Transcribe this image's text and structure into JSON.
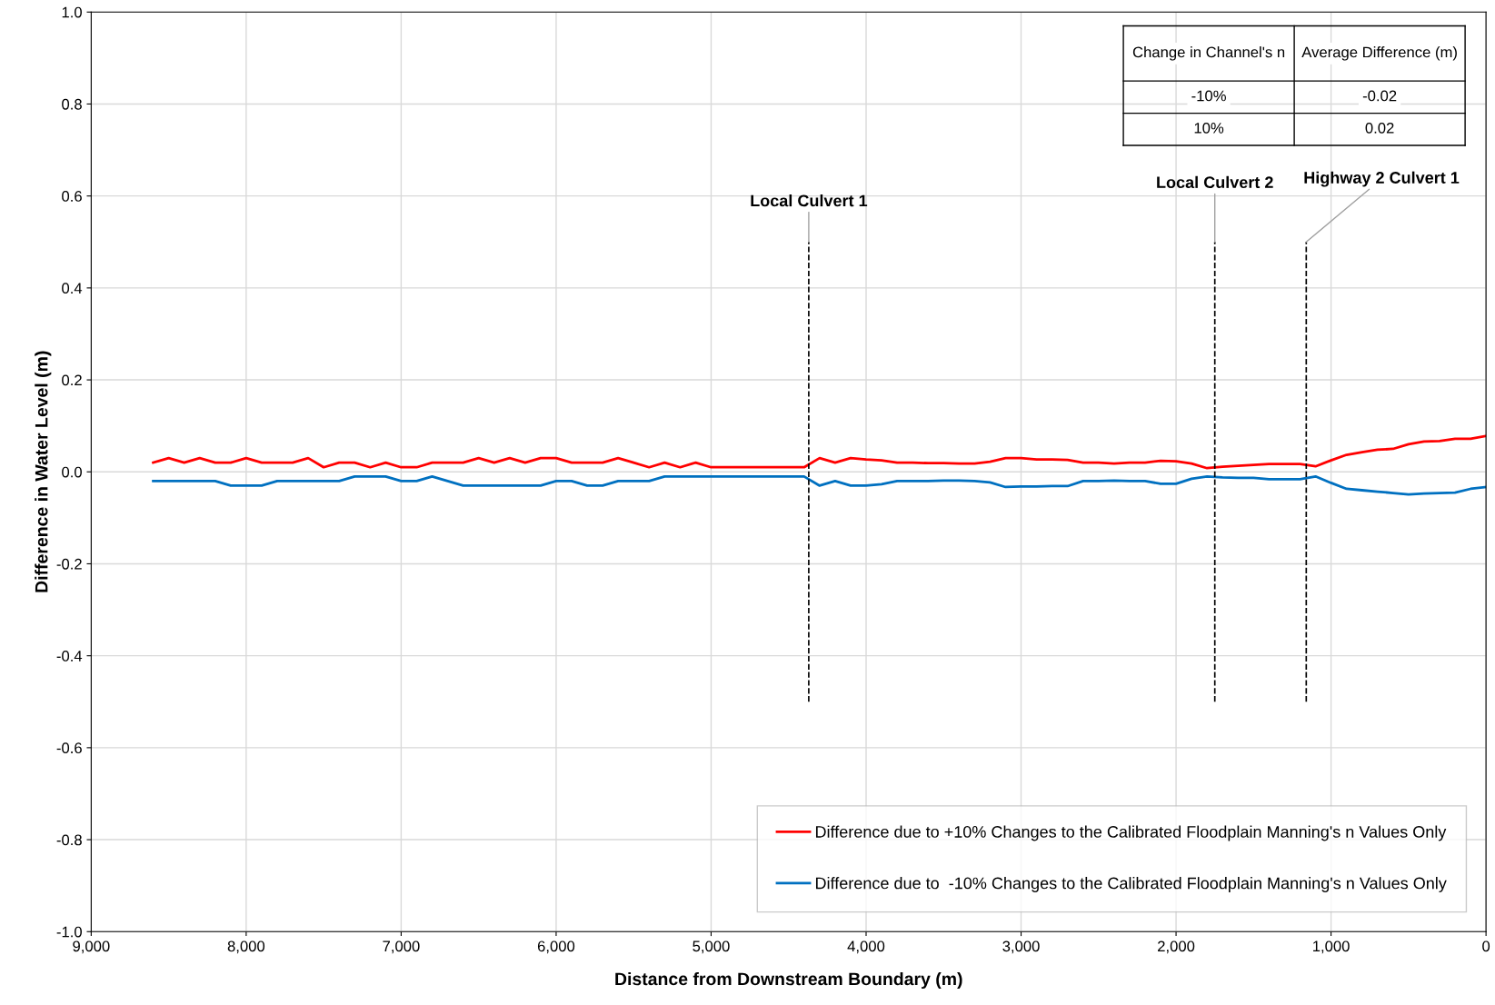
{
  "chart_data": {
    "type": "line",
    "xlabel": "Distance from Downstream Boundary (m)",
    "ylabel": "Difference in Water Level (m)",
    "x": [
      8600,
      8500,
      8400,
      8300,
      8200,
      8100,
      8000,
      7900,
      7800,
      7700,
      7600,
      7500,
      7400,
      7300,
      7200,
      7100,
      7000,
      6900,
      6800,
      6700,
      6600,
      6500,
      6400,
      6300,
      6200,
      6100,
      6000,
      5900,
      5800,
      5700,
      5600,
      5500,
      5400,
      5300,
      5200,
      5100,
      5000,
      4900,
      4800,
      4700,
      4600,
      4500,
      4400,
      4300,
      4200,
      4100,
      4000,
      3900,
      3800,
      3700,
      3600,
      3500,
      3400,
      3300,
      3200,
      3100,
      3000,
      2900,
      2800,
      2700,
      2600,
      2500,
      2400,
      2300,
      2200,
      2100,
      2000,
      1900,
      1800,
      1700,
      1600,
      1500,
      1400,
      1300,
      1200,
      1100,
      1000,
      900,
      800,
      700,
      600,
      500,
      400,
      300,
      200,
      100,
      0
    ],
    "series": [
      {
        "name": "Difference due to +10% Changes to the Calibrated Floodplain Manning's n Values Only",
        "color": "#ff0000",
        "values": [
          0.02,
          0.03,
          0.02,
          0.03,
          0.02,
          0.02,
          0.03,
          0.02,
          0.02,
          0.02,
          0.03,
          0.01,
          0.02,
          0.02,
          0.01,
          0.02,
          0.01,
          0.01,
          0.02,
          0.02,
          0.02,
          0.03,
          0.02,
          0.03,
          0.02,
          0.03,
          0.03,
          0.02,
          0.02,
          0.02,
          0.03,
          0.02,
          0.01,
          0.02,
          0.01,
          0.02,
          0.01,
          0.01,
          0.01,
          0.01,
          0.01,
          0.01,
          0.01,
          0.03,
          0.02,
          0.03,
          0.027,
          0.025,
          0.02,
          0.02,
          0.019,
          0.019,
          0.018,
          0.018,
          0.022,
          0.03,
          0.03,
          0.027,
          0.027,
          0.026,
          0.02,
          0.02,
          0.018,
          0.02,
          0.02,
          0.024,
          0.023,
          0.018,
          0.008,
          0.011,
          0.013,
          0.015,
          0.017,
          0.017,
          0.017,
          0.012,
          0.025,
          0.037,
          0.043,
          0.048,
          0.05,
          0.06,
          0.066,
          0.067,
          0.072,
          0.072,
          0.078
        ]
      },
      {
        "name": "Difference due to  -10% Changes to the Calibrated Floodplain Manning's n Values Only",
        "color": "#0070c0",
        "values": [
          -0.02,
          -0.02,
          -0.02,
          -0.02,
          -0.02,
          -0.03,
          -0.03,
          -0.03,
          -0.02,
          -0.02,
          -0.02,
          -0.02,
          -0.02,
          -0.01,
          -0.01,
          -0.01,
          -0.02,
          -0.02,
          -0.01,
          -0.02,
          -0.03,
          -0.03,
          -0.03,
          -0.03,
          -0.03,
          -0.03,
          -0.02,
          -0.02,
          -0.03,
          -0.03,
          -0.02,
          -0.02,
          -0.02,
          -0.01,
          -0.01,
          -0.01,
          -0.01,
          -0.01,
          -0.01,
          -0.01,
          -0.01,
          -0.01,
          -0.01,
          -0.03,
          -0.02,
          -0.03,
          -0.03,
          -0.027,
          -0.02,
          -0.02,
          -0.02,
          -0.019,
          -0.019,
          -0.02,
          -0.023,
          -0.033,
          -0.032,
          -0.032,
          -0.031,
          -0.031,
          -0.02,
          -0.02,
          -0.019,
          -0.02,
          -0.02,
          -0.026,
          -0.026,
          -0.015,
          -0.01,
          -0.012,
          -0.013,
          -0.013,
          -0.016,
          -0.016,
          -0.016,
          -0.01,
          -0.024,
          -0.037,
          -0.04,
          -0.043,
          -0.046,
          -0.049,
          -0.047,
          -0.046,
          -0.045,
          -0.037,
          -0.033
        ]
      }
    ],
    "xlim": [
      9000,
      0
    ],
    "xticks": [
      {
        "value": 9000,
        "label": "9,000"
      },
      {
        "value": 8000,
        "label": "8,000"
      },
      {
        "value": 7000,
        "label": "7,000"
      },
      {
        "value": 6000,
        "label": "6,000"
      },
      {
        "value": 5000,
        "label": "5,000"
      },
      {
        "value": 4000,
        "label": "4,000"
      },
      {
        "value": 3000,
        "label": "3,000"
      },
      {
        "value": 2000,
        "label": "2,000"
      },
      {
        "value": 1000,
        "label": "1,000"
      },
      0
    ],
    "ylim": [
      -1.0,
      1.0
    ],
    "yticks": [
      {
        "value": -1.0,
        "label": "-1.0"
      },
      {
        "value": -0.8,
        "label": "-0.8"
      },
      {
        "value": -0.6,
        "label": "-0.6"
      },
      {
        "value": -0.4,
        "label": "-0.4"
      },
      {
        "value": -0.2,
        "label": "-0.2"
      },
      {
        "value": 0,
        "label": "0.0"
      },
      {
        "value": 0.2,
        "label": "0.2"
      },
      {
        "value": 0.4,
        "label": "0.4"
      },
      {
        "value": 0.6,
        "label": "0.6"
      },
      {
        "value": 0.8,
        "label": "0.8"
      },
      {
        "value": 1.0,
        "label": "1.0"
      }
    ],
    "ref_lines": [
      {
        "axis": "x",
        "value": 4370,
        "label": "Local Culvert 1",
        "color": "#000000",
        "line_style": "dashed"
      },
      {
        "axis": "x",
        "value": 1750,
        "label": "Local Culvert 2",
        "color": "#000000",
        "line_style": "dashed"
      },
      {
        "axis": "x",
        "value": 1160,
        "label": "Highway 2 Culvert 1",
        "color": "#000000",
        "line_style": "dashed"
      }
    ],
    "annotations": [
      "Change in Channel's n",
      "Average Difference (m)",
      "-10%",
      "-0.02",
      "10%",
      "0.02"
    ],
    "grid": true,
    "legend": "bottom right",
    "marker": "none",
    "line_style": "solid"
  }
}
